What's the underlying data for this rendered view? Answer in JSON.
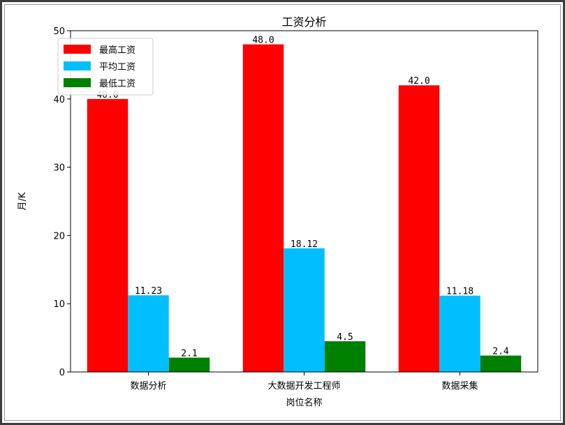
{
  "chart_data": {
    "type": "bar",
    "title": "工资分析",
    "xlabel": "岗位名称",
    "ylabel": "月/K",
    "categories": [
      "数据分析",
      "大数据开发工程师",
      "数据采集"
    ],
    "series": [
      {
        "name": "最高工资",
        "color": "#ff0000",
        "values": [
          40.0,
          48.0,
          42.0
        ],
        "labels": [
          "40.0",
          "48.0",
          "42.0"
        ]
      },
      {
        "name": "平均工资",
        "color": "#00bfff",
        "values": [
          11.23,
          18.12,
          11.18
        ],
        "labels": [
          "11.23",
          "18.12",
          "11.18"
        ]
      },
      {
        "name": "最低工资",
        "color": "#008000",
        "values": [
          2.1,
          4.5,
          2.4
        ],
        "labels": [
          "2.1",
          "4.5",
          "2.4"
        ]
      }
    ],
    "ylim": [
      0,
      50
    ],
    "yticks": [
      0,
      10,
      20,
      30,
      40,
      50
    ],
    "grid": false,
    "legend": "top-left"
  }
}
